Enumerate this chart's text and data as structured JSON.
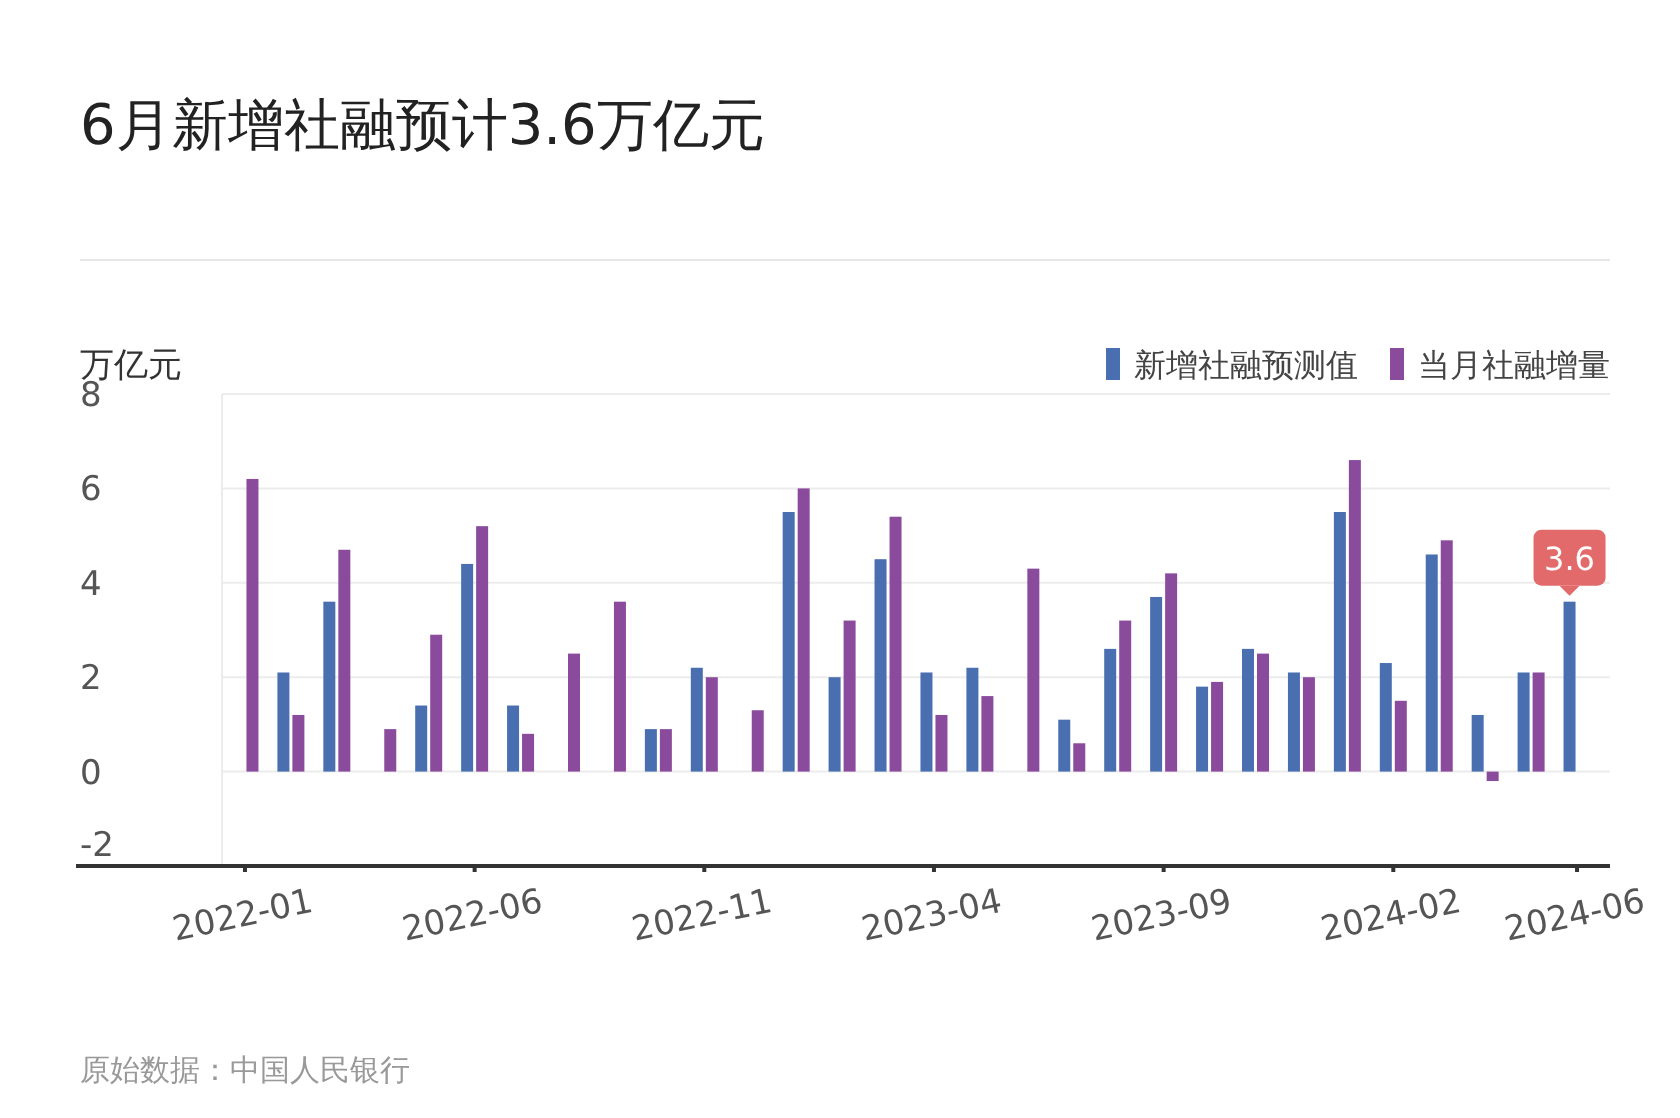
{
  "chart_data": {
    "type": "bar",
    "title": "6月新增社融预计3.6万亿元",
    "ylabel": "万亿元",
    "categories": [
      "2022-01",
      null,
      null,
      null,
      null,
      "2022-06",
      null,
      null,
      null,
      null,
      "2022-11",
      null,
      null,
      null,
      null,
      "2023-04",
      null,
      null,
      null,
      null,
      "2023-09",
      null,
      null,
      null,
      null,
      "2024-02",
      null,
      null,
      null,
      "2024-06"
    ],
    "series": [
      {
        "name": "新增社融预测值",
        "color": "#4a6fb0",
        "values": [
          null,
          2.1,
          3.6,
          null,
          1.4,
          4.4,
          1.4,
          null,
          null,
          0.9,
          2.2,
          null,
          5.5,
          2.0,
          4.5,
          2.1,
          2.2,
          null,
          1.1,
          2.6,
          3.7,
          1.8,
          2.6,
          2.1,
          5.5,
          2.3,
          4.6,
          1.2,
          2.1,
          3.6
        ],
        "value_labels": [
          null,
          null,
          null,
          null,
          null,
          null,
          null,
          null,
          null,
          null,
          null,
          null,
          null,
          null,
          null,
          null,
          null,
          null,
          null,
          null,
          null,
          null,
          null,
          null,
          null,
          null,
          null,
          null,
          null,
          "3.6"
        ]
      },
      {
        "name": "当月社融增量",
        "color": "#8b4b9c",
        "values": [
          6.2,
          1.2,
          4.7,
          0.9,
          2.9,
          5.2,
          0.8,
          2.5,
          3.6,
          0.9,
          2.0,
          1.3,
          6.0,
          3.2,
          5.4,
          1.2,
          1.6,
          4.3,
          0.6,
          3.2,
          4.2,
          1.9,
          2.5,
          2.0,
          6.6,
          1.5,
          4.9,
          -0.2,
          2.1,
          null
        ]
      }
    ],
    "ylim": [
      -2,
      8
    ],
    "yticks": [
      -2,
      0,
      2,
      4,
      6,
      8
    ],
    "grid": "y",
    "legend": "top right",
    "annotations": [
      "原始数据：中国人民银行"
    ]
  }
}
